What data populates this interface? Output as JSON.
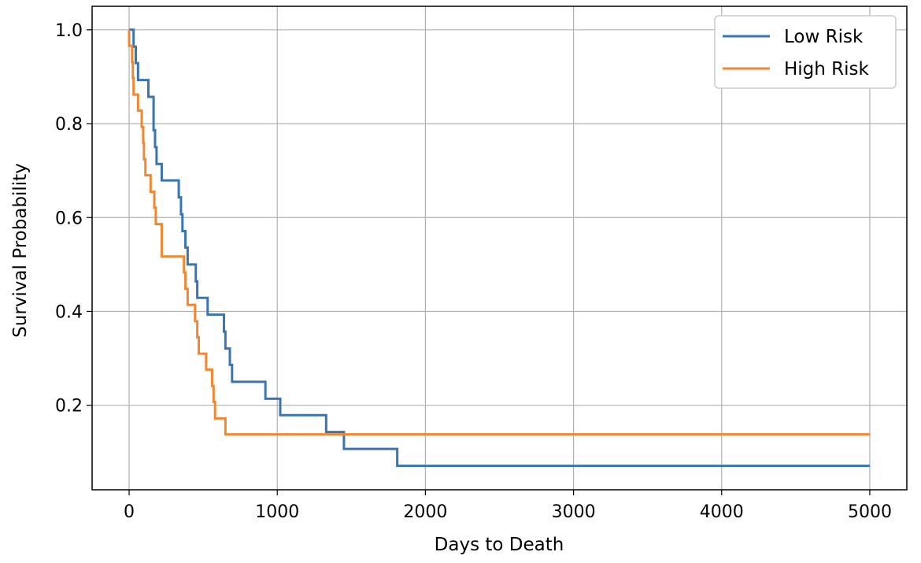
{
  "chart_data": {
    "type": "line",
    "step": true,
    "xlabel": "Days to Death",
    "ylabel": "Survival Probability",
    "xlim": [
      -250,
      5250
    ],
    "ylim": [
      0.02,
      1.05
    ],
    "xticks": [
      0,
      1000,
      2000,
      3000,
      4000,
      5000
    ],
    "xtick_labels": [
      "0",
      "1000",
      "2000",
      "3000",
      "4000",
      "5000"
    ],
    "yticks": [
      0.2,
      0.4,
      0.6,
      0.8,
      1.0
    ],
    "ytick_labels": [
      "0.2",
      "0.4",
      "0.6",
      "0.8",
      "1.0"
    ],
    "grid": true,
    "legend_position": "top-right",
    "series": [
      {
        "name": "Low Risk",
        "color": "#3a74b1",
        "points": [
          [
            0,
            1.0
          ],
          [
            30,
            1.0
          ],
          [
            30,
            0.964
          ],
          [
            45,
            0.964
          ],
          [
            45,
            0.929
          ],
          [
            60,
            0.929
          ],
          [
            60,
            0.893
          ],
          [
            130,
            0.893
          ],
          [
            130,
            0.857
          ],
          [
            165,
            0.857
          ],
          [
            165,
            0.786
          ],
          [
            175,
            0.786
          ],
          [
            175,
            0.75
          ],
          [
            185,
            0.75
          ],
          [
            185,
            0.714
          ],
          [
            220,
            0.714
          ],
          [
            220,
            0.679
          ],
          [
            335,
            0.679
          ],
          [
            335,
            0.643
          ],
          [
            350,
            0.643
          ],
          [
            350,
            0.607
          ],
          [
            360,
            0.607
          ],
          [
            360,
            0.571
          ],
          [
            380,
            0.571
          ],
          [
            380,
            0.536
          ],
          [
            395,
            0.536
          ],
          [
            395,
            0.5
          ],
          [
            450,
            0.5
          ],
          [
            450,
            0.464
          ],
          [
            460,
            0.464
          ],
          [
            460,
            0.429
          ],
          [
            530,
            0.429
          ],
          [
            530,
            0.393
          ],
          [
            640,
            0.393
          ],
          [
            640,
            0.357
          ],
          [
            650,
            0.357
          ],
          [
            650,
            0.321
          ],
          [
            680,
            0.321
          ],
          [
            680,
            0.286
          ],
          [
            695,
            0.286
          ],
          [
            695,
            0.25
          ],
          [
            920,
            0.25
          ],
          [
            920,
            0.214
          ],
          [
            1020,
            0.214
          ],
          [
            1020,
            0.179
          ],
          [
            1330,
            0.179
          ],
          [
            1330,
            0.143
          ],
          [
            1450,
            0.143
          ],
          [
            1450,
            0.107
          ],
          [
            1810,
            0.107
          ],
          [
            1810,
            0.071
          ],
          [
            5000,
            0.071
          ]
        ]
      },
      {
        "name": "High Risk",
        "color": "#ef8733",
        "points": [
          [
            0,
            1.0
          ],
          [
            0,
            0.966
          ],
          [
            20,
            0.966
          ],
          [
            20,
            0.931
          ],
          [
            25,
            0.931
          ],
          [
            25,
            0.897
          ],
          [
            30,
            0.897
          ],
          [
            30,
            0.862
          ],
          [
            60,
            0.862
          ],
          [
            60,
            0.828
          ],
          [
            85,
            0.828
          ],
          [
            85,
            0.793
          ],
          [
            95,
            0.793
          ],
          [
            95,
            0.759
          ],
          [
            100,
            0.759
          ],
          [
            100,
            0.724
          ],
          [
            110,
            0.724
          ],
          [
            110,
            0.69
          ],
          [
            145,
            0.69
          ],
          [
            145,
            0.655
          ],
          [
            170,
            0.655
          ],
          [
            170,
            0.621
          ],
          [
            180,
            0.621
          ],
          [
            180,
            0.586
          ],
          [
            220,
            0.586
          ],
          [
            220,
            0.517
          ],
          [
            370,
            0.517
          ],
          [
            370,
            0.483
          ],
          [
            380,
            0.483
          ],
          [
            380,
            0.448
          ],
          [
            395,
            0.448
          ],
          [
            395,
            0.414
          ],
          [
            445,
            0.414
          ],
          [
            445,
            0.379
          ],
          [
            460,
            0.379
          ],
          [
            460,
            0.345
          ],
          [
            470,
            0.345
          ],
          [
            470,
            0.31
          ],
          [
            520,
            0.31
          ],
          [
            520,
            0.276
          ],
          [
            560,
            0.276
          ],
          [
            560,
            0.241
          ],
          [
            570,
            0.241
          ],
          [
            570,
            0.207
          ],
          [
            580,
            0.207
          ],
          [
            580,
            0.172
          ],
          [
            650,
            0.172
          ],
          [
            650,
            0.138
          ],
          [
            5000,
            0.138
          ]
        ]
      }
    ]
  }
}
